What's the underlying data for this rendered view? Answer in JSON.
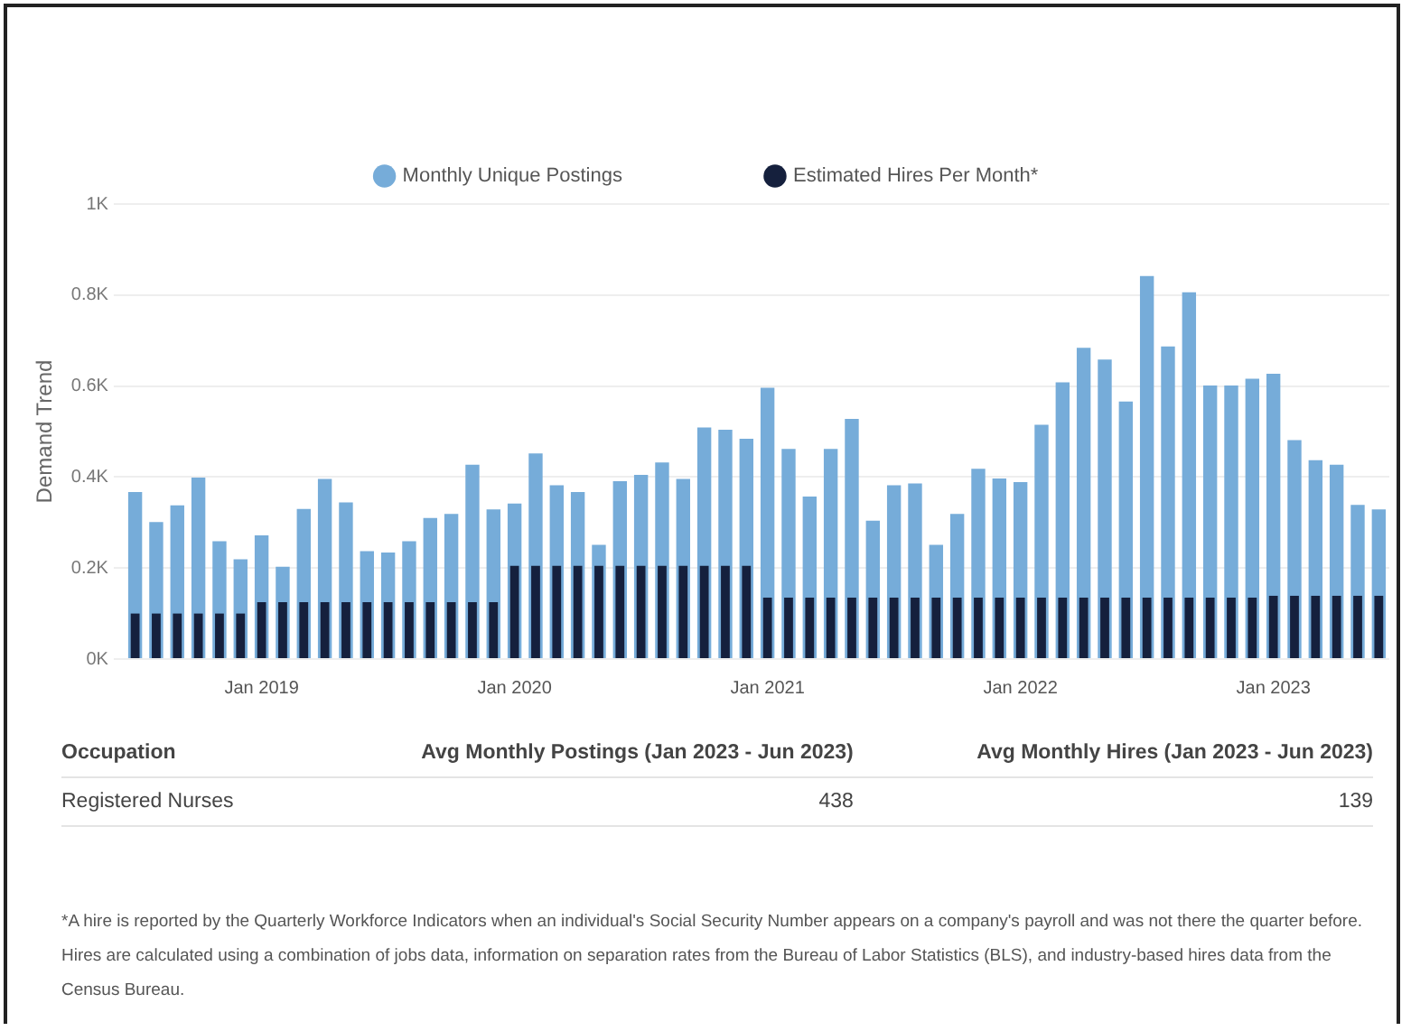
{
  "chart_data": {
    "type": "bar",
    "ylabel": "Demand Trend",
    "categories": [
      null,
      null,
      null,
      null,
      null,
      null,
      "Jan 2019",
      null,
      null,
      null,
      null,
      null,
      null,
      null,
      null,
      null,
      null,
      null,
      "Jan 2020",
      null,
      null,
      null,
      null,
      null,
      null,
      null,
      null,
      null,
      null,
      null,
      "Jan 2021",
      null,
      null,
      null,
      null,
      null,
      null,
      null,
      null,
      null,
      null,
      null,
      "Jan 2022",
      null,
      null,
      null,
      null,
      null,
      null,
      null,
      null,
      null,
      null,
      null,
      "Jan 2023",
      null,
      null,
      null,
      null,
      null
    ],
    "series": [
      {
        "name": "Monthly Unique Postings",
        "color": "#76acd9",
        "values": [
          367,
          301,
          338,
          399,
          259,
          219,
          272,
          203,
          330,
          396,
          344,
          237,
          234,
          259,
          310,
          319,
          427,
          329,
          342,
          452,
          382,
          367,
          251,
          391,
          405,
          432,
          396,
          509,
          504,
          484,
          596,
          462,
          357,
          462,
          528,
          304,
          382,
          386,
          251,
          319,
          418,
          397,
          389,
          515,
          608,
          684,
          658,
          566,
          842,
          687,
          806,
          601,
          601,
          616,
          627,
          481,
          437,
          427,
          339,
          329
        ]
      },
      {
        "name": "Estimated Hires Per Month*",
        "color": "#15203d",
        "values": [
          100,
          100,
          100,
          100,
          100,
          100,
          125,
          125,
          125,
          125,
          125,
          125,
          125,
          125,
          125,
          125,
          125,
          125,
          205,
          205,
          205,
          205,
          205,
          205,
          205,
          205,
          205,
          205,
          205,
          205,
          135,
          135,
          135,
          135,
          135,
          135,
          135,
          135,
          135,
          135,
          135,
          135,
          135,
          135,
          135,
          135,
          135,
          135,
          135,
          135,
          135,
          135,
          135,
          135,
          139,
          139,
          139,
          139,
          139,
          139
        ]
      }
    ],
    "ylim": [
      0,
      1000
    ],
    "yticks": [
      {
        "value": 0,
        "label": "0K"
      },
      {
        "value": 200,
        "label": "0.2K"
      },
      {
        "value": 400,
        "label": "0.4K"
      },
      {
        "value": 600,
        "label": "0.6K"
      },
      {
        "value": 800,
        "label": "0.8K"
      },
      {
        "value": 1000,
        "label": "1K"
      }
    ],
    "grid": "y",
    "legend": "top",
    "annotations": [
      "Occupation",
      "Avg Monthly Postings (Jan 2023 - Jun 2023)",
      "Avg Monthly Hires (Jan 2023 - Jun 2023)",
      "Registered Nurses",
      "438",
      "139",
      "*A hire is reported by the Quarterly Workforce Indicators when an individual's Social Security Number appears on a company's payroll and was not there the quarter before. Hires are calculated using a combination of jobs data, information on separation rates from the Bureau of Labor Statistics (BLS), and industry-based hires data from the Census Bureau."
    ]
  }
}
